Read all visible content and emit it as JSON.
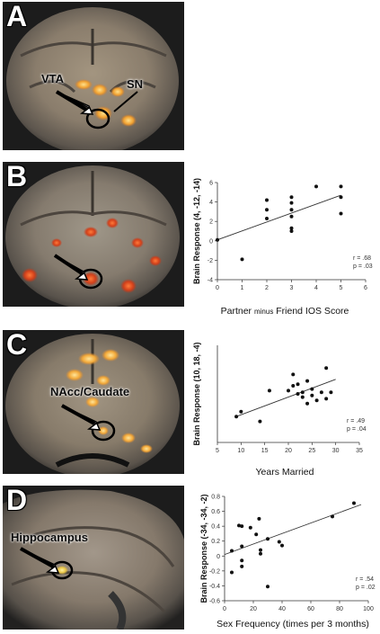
{
  "panels": [
    {
      "letter": "A",
      "regions": [
        "VTA",
        "SN"
      ]
    },
    {
      "letter": "B",
      "chart_data": {
        "type": "scatter",
        "ylabel": "Brain Response (4, -12, -14)",
        "xlabel_parts": [
          "Partner",
          "minus",
          "Friend IOS Score"
        ],
        "xlim": [
          0,
          6
        ],
        "ylim": [
          -4,
          6
        ],
        "xticks": [
          "0",
          "1",
          "2",
          "3",
          "4",
          "5",
          "6"
        ],
        "yticks": [
          "6",
          "4",
          "2",
          "0",
          "-2",
          "-4"
        ],
        "points": [
          [
            0,
            0.1
          ],
          [
            1,
            -1.9
          ],
          [
            2,
            2.3
          ],
          [
            2,
            3.2
          ],
          [
            2,
            4.2
          ],
          [
            3,
            1.0
          ],
          [
            3,
            1.3
          ],
          [
            3,
            2.5
          ],
          [
            3,
            3.2
          ],
          [
            3,
            3.9
          ],
          [
            3,
            4.5
          ],
          [
            4,
            5.6
          ],
          [
            5,
            2.8
          ],
          [
            5,
            4.5
          ],
          [
            5,
            5.6
          ]
        ],
        "fit": [
          [
            0,
            0.1
          ],
          [
            5,
            4.7
          ]
        ],
        "r": "r = .68",
        "p": "p = .03"
      }
    },
    {
      "letter": "C",
      "regions": [
        "NAcc/Caudate"
      ],
      "chart_data": {
        "type": "scatter",
        "ylabel": "Brain Response (10, 18, -4)",
        "xlabel": "Years Married",
        "xlim": [
          5,
          35
        ],
        "ylim": [
          -0.1,
          0.5
        ],
        "xticks": [
          "5",
          "10",
          "15",
          "20",
          "25",
          "30",
          "35"
        ],
        "yticks": [],
        "points": [
          [
            9,
            0.06
          ],
          [
            10,
            0.09
          ],
          [
            14,
            0.03
          ],
          [
            16,
            0.22
          ],
          [
            20,
            0.22
          ],
          [
            21,
            0.25
          ],
          [
            21,
            0.32
          ],
          [
            22,
            0.26
          ],
          [
            22,
            0.2
          ],
          [
            23,
            0.21
          ],
          [
            23,
            0.18
          ],
          [
            24,
            0.14
          ],
          [
            24,
            0.28
          ],
          [
            25,
            0.23
          ],
          [
            25,
            0.19
          ],
          [
            26,
            0.16
          ],
          [
            27,
            0.21
          ],
          [
            28,
            0.17
          ],
          [
            28,
            0.36
          ],
          [
            29,
            0.21
          ]
        ],
        "fit": [
          [
            9,
            0.06
          ],
          [
            30,
            0.29
          ]
        ],
        "r": "r = .49",
        "p": "p = .04"
      }
    },
    {
      "letter": "D",
      "regions": [
        "Hippocampus"
      ],
      "chart_data": {
        "type": "scatter",
        "ylabel": "Brain Response (-34, -34, -2)",
        "xlabel": "Sex Frequency (times per 3 months)",
        "xlim": [
          0,
          100
        ],
        "ylim": [
          -0.6,
          0.8
        ],
        "xticks": [
          "0",
          "20",
          "40",
          "60",
          "80",
          "100"
        ],
        "yticks": [
          "0.8",
          "0.6",
          "0.4",
          "0.2",
          "0",
          "-0.2",
          "-0.4",
          "-0.6"
        ],
        "points": [
          [
            5,
            0.07
          ],
          [
            5,
            -0.22
          ],
          [
            10,
            0.41
          ],
          [
            12,
            0.4
          ],
          [
            12,
            -0.06
          ],
          [
            12,
            -0.14
          ],
          [
            12,
            0.13
          ],
          [
            18,
            0.38
          ],
          [
            22,
            0.29
          ],
          [
            24,
            0.5
          ],
          [
            25,
            0.08
          ],
          [
            25,
            0.03
          ],
          [
            30,
            0.23
          ],
          [
            30,
            -0.41
          ],
          [
            38,
            0.19
          ],
          [
            40,
            0.14
          ],
          [
            75,
            0.53
          ],
          [
            90,
            0.71
          ]
        ],
        "fit": [
          [
            0,
            0.02
          ],
          [
            95,
            0.69
          ]
        ],
        "r": "r = .54",
        "p": "p = .02"
      }
    }
  ]
}
